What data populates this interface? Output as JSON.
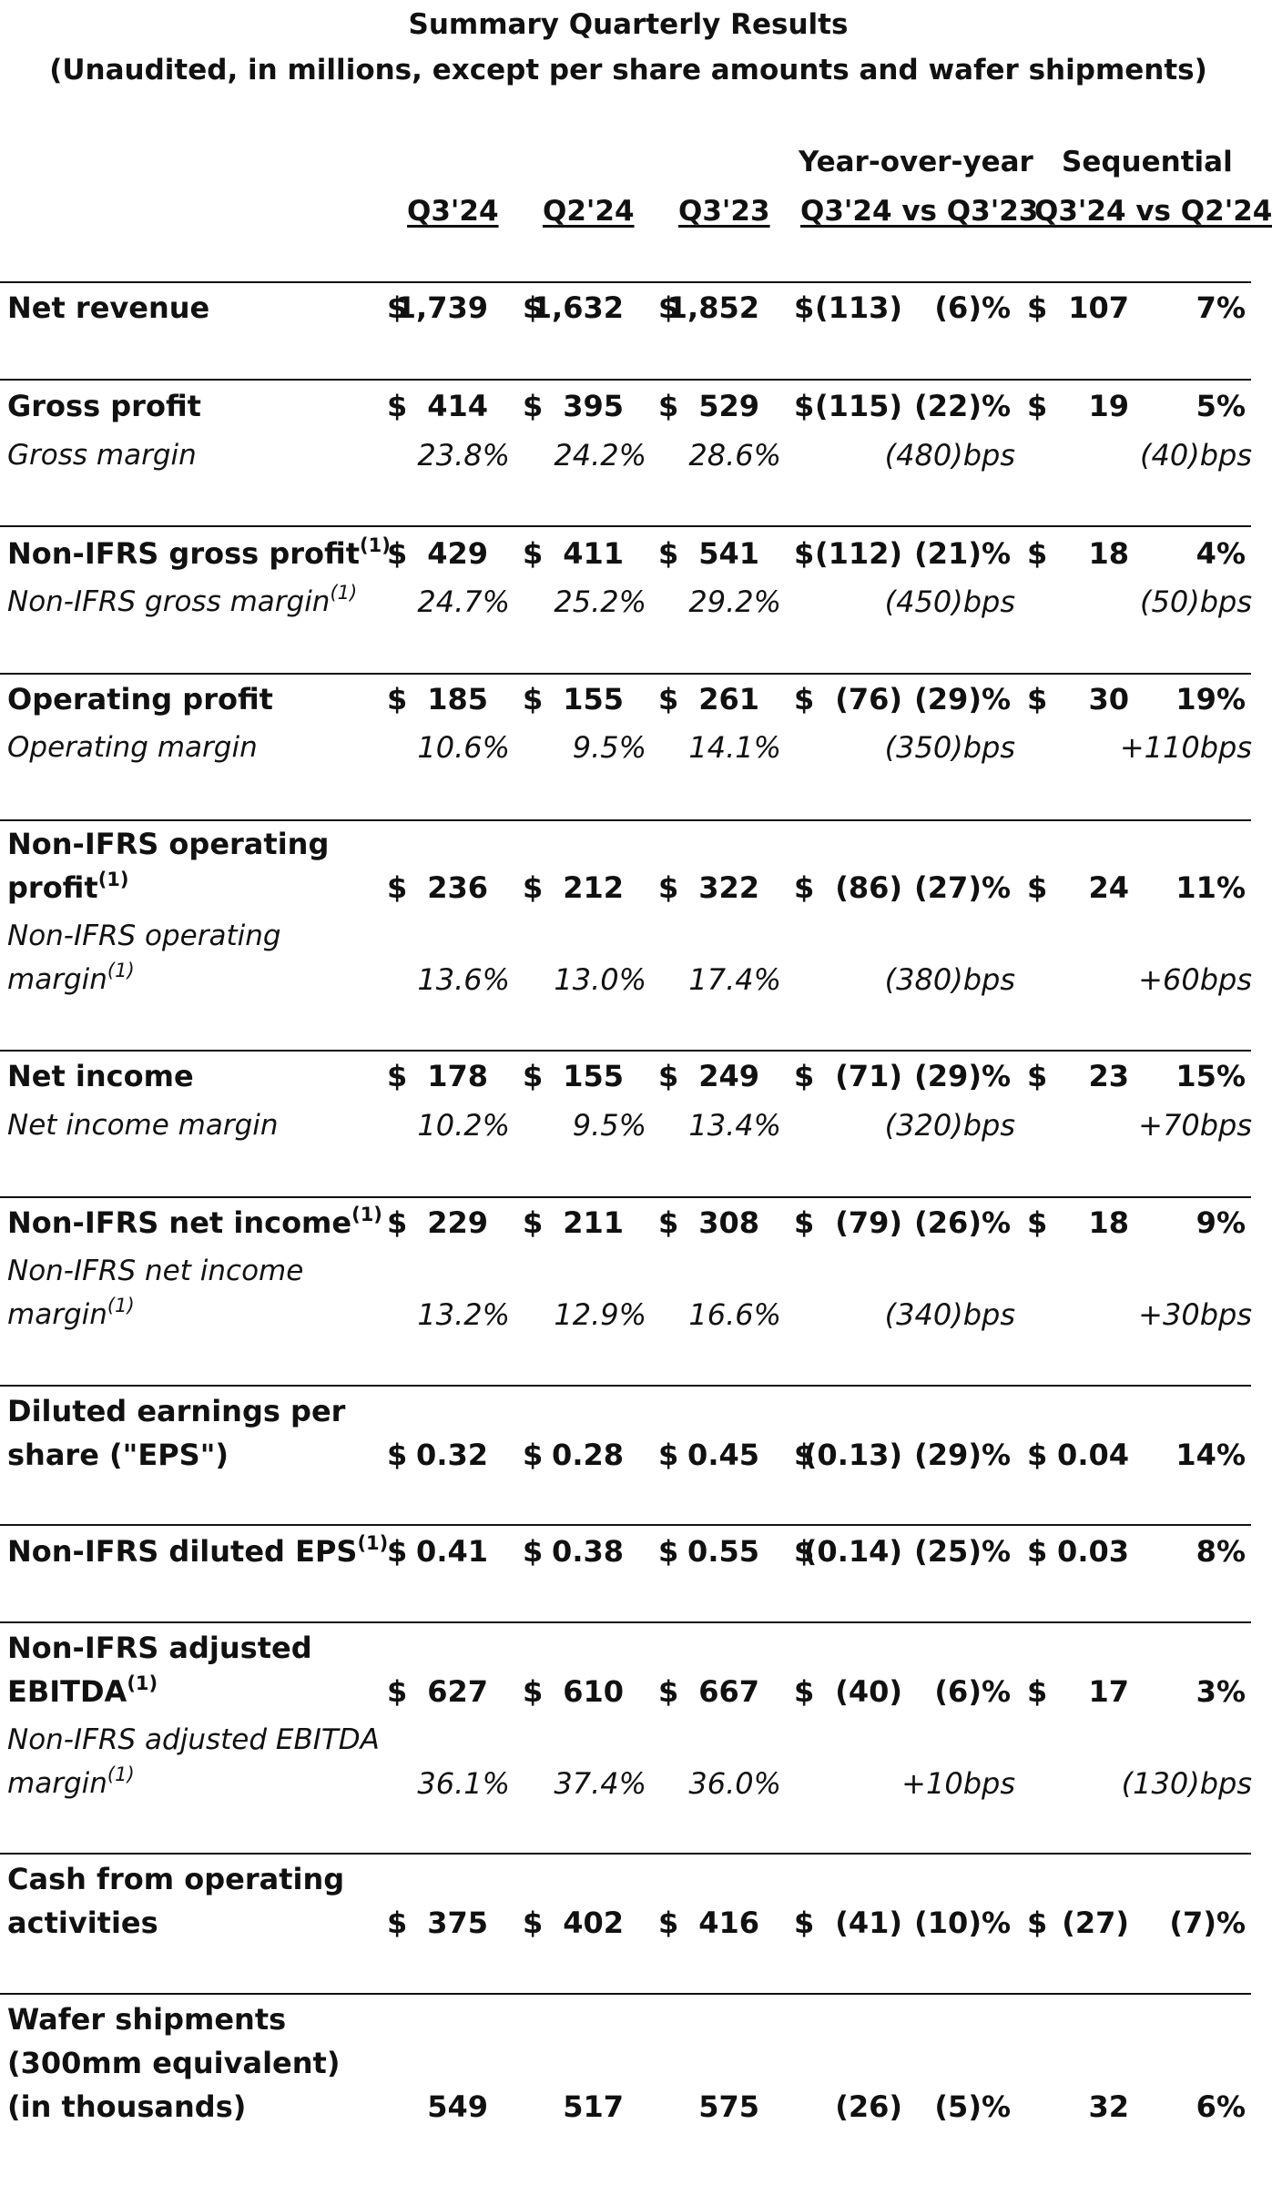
{
  "title": "Summary Quarterly Results",
  "subtitle": "(Unaudited, in millions, except per share amounts and wafer shipments)",
  "group_headers": {
    "yoy": "Year-over-year",
    "seq": "Sequential"
  },
  "columns": {
    "q3_24": "Q3'24",
    "q2_24": "Q2'24",
    "q3_23": "Q3'23",
    "yoy": "Q3'24 vs Q3'23",
    "seq": "Q3'24 vs Q2'24"
  },
  "footnote_marker": "(1)",
  "rows": {
    "net_revenue": {
      "label": "Net revenue",
      "cur": [
        "$",
        "$",
        "$",
        "$",
        "$"
      ],
      "q3_24": "1,739",
      "q2_24": "1,632",
      "q3_23": "1,852",
      "yoy_amt": "(113)",
      "yoy_pct": "(6)%",
      "seq_amt": "107",
      "seq_pct": "7%"
    },
    "gross_profit": {
      "label": "Gross profit",
      "cur": [
        "$",
        "$",
        "$",
        "$",
        "$"
      ],
      "q3_24": "414",
      "q2_24": "395",
      "q3_23": "529",
      "yoy_amt": "(115)",
      "yoy_pct": "(22)%",
      "seq_amt": "19",
      "seq_pct": "5%"
    },
    "gross_margin": {
      "label": "Gross margin",
      "q3_24": "23.8%",
      "q2_24": "24.2%",
      "q3_23": "28.6%",
      "yoy": "(480)bps",
      "seq": "(40)bps"
    },
    "nonifrs_gross_profit": {
      "label": "Non-IFRS gross profit",
      "cur": [
        "$",
        "$",
        "$",
        "$",
        "$"
      ],
      "q3_24": "429",
      "q2_24": "411",
      "q3_23": "541",
      "yoy_amt": "(112)",
      "yoy_pct": "(21)%",
      "seq_amt": "18",
      "seq_pct": "4%"
    },
    "nonifrs_gross_margin": {
      "label": "Non-IFRS gross margin",
      "q3_24": "24.7%",
      "q2_24": "25.2%",
      "q3_23": "29.2%",
      "yoy": "(450)bps",
      "seq": "(50)bps"
    },
    "operating_profit": {
      "label": "Operating profit",
      "cur": [
        "$",
        "$",
        "$",
        "$",
        "$"
      ],
      "q3_24": "185",
      "q2_24": "155",
      "q3_23": "261",
      "yoy_amt": "(76)",
      "yoy_pct": "(29)%",
      "seq_amt": "30",
      "seq_pct": "19%"
    },
    "operating_margin": {
      "label": "Operating margin",
      "q3_24": "10.6%",
      "q2_24": "9.5%",
      "q3_23": "14.1%",
      "yoy": "(350)bps",
      "seq": "+110bps"
    },
    "nonifrs_operating_profit": {
      "label_line1": "Non-IFRS operating",
      "label_line2": "profit",
      "cur": [
        "$",
        "$",
        "$",
        "$",
        "$"
      ],
      "q3_24": "236",
      "q2_24": "212",
      "q3_23": "322",
      "yoy_amt": "(86)",
      "yoy_pct": "(27)%",
      "seq_amt": "24",
      "seq_pct": "11%"
    },
    "nonifrs_operating_margin": {
      "label_line1": "Non-IFRS operating",
      "label_line2": "margin",
      "q3_24": "13.6%",
      "q2_24": "13.0%",
      "q3_23": "17.4%",
      "yoy": "(380)bps",
      "seq": "+60bps"
    },
    "net_income": {
      "label": "Net income",
      "cur": [
        "$",
        "$",
        "$",
        "$",
        "$"
      ],
      "q3_24": "178",
      "q2_24": "155",
      "q3_23": "249",
      "yoy_amt": "(71)",
      "yoy_pct": "(29)%",
      "seq_amt": "23",
      "seq_pct": "15%"
    },
    "net_income_margin": {
      "label": "Net income margin",
      "q3_24": "10.2%",
      "q2_24": "9.5%",
      "q3_23": "13.4%",
      "yoy": "(320)bps",
      "seq": "+70bps"
    },
    "nonifrs_net_income": {
      "label": "Non-IFRS net income",
      "cur": [
        "$",
        "$",
        "$",
        "$",
        "$"
      ],
      "q3_24": "229",
      "q2_24": "211",
      "q3_23": "308",
      "yoy_amt": "(79)",
      "yoy_pct": "(26)%",
      "seq_amt": "18",
      "seq_pct": "9%"
    },
    "nonifrs_net_income_margin": {
      "label_line1": "Non-IFRS net income",
      "label_line2": "margin",
      "q3_24": "13.2%",
      "q2_24": "12.9%",
      "q3_23": "16.6%",
      "yoy": "(340)bps",
      "seq": "+30bps"
    },
    "diluted_eps": {
      "label_line1": "Diluted earnings per",
      "label_line2": "share (\"EPS\")",
      "cur": [
        "$",
        "$",
        "$",
        "$",
        "$"
      ],
      "q3_24": "0.32",
      "q2_24": "0.28",
      "q3_23": "0.45",
      "yoy_amt": "(0.13)",
      "yoy_pct": "(29)%",
      "seq_amt": "0.04",
      "seq_pct": "14%"
    },
    "nonifrs_diluted_eps": {
      "label": "Non-IFRS diluted EPS",
      "cur": [
        "$",
        "$",
        "$",
        "$",
        "$"
      ],
      "q3_24": "0.41",
      "q2_24": "0.38",
      "q3_23": "0.55",
      "yoy_amt": "(0.14)",
      "yoy_pct": "(25)%",
      "seq_amt": "0.03",
      "seq_pct": "8%"
    },
    "nonifrs_adj_ebitda": {
      "label_line1": "Non-IFRS adjusted",
      "label_line2": "EBITDA",
      "cur": [
        "$",
        "$",
        "$",
        "$",
        "$"
      ],
      "q3_24": "627",
      "q2_24": "610",
      "q3_23": "667",
      "yoy_amt": "(40)",
      "yoy_pct": "(6)%",
      "seq_amt": "17",
      "seq_pct": "3%"
    },
    "nonifrs_adj_ebitda_margin": {
      "label_line1": "Non-IFRS adjusted EBITDA",
      "label_line2": "margin",
      "q3_24": "36.1%",
      "q2_24": "37.4%",
      "q3_23": "36.0%",
      "yoy": "+10bps",
      "seq": "(130)bps"
    },
    "cash_from_ops": {
      "label_line1": "Cash from operating",
      "label_line2": "activities",
      "cur": [
        "$",
        "$",
        "$",
        "$",
        "$"
      ],
      "q3_24": "375",
      "q2_24": "402",
      "q3_23": "416",
      "yoy_amt": "(41)",
      "yoy_pct": "(10)%",
      "seq_amt": "(27)",
      "seq_pct": "(7)%"
    },
    "wafer_shipments": {
      "label_line1": "Wafer shipments",
      "label_line2": "(300mm equivalent)",
      "label_line3": "(in thousands)",
      "q3_24": "549",
      "q2_24": "517",
      "q3_23": "575",
      "yoy_amt": "(26)",
      "yoy_pct": "(5)%",
      "seq_amt": "32",
      "seq_pct": "6%"
    }
  }
}
